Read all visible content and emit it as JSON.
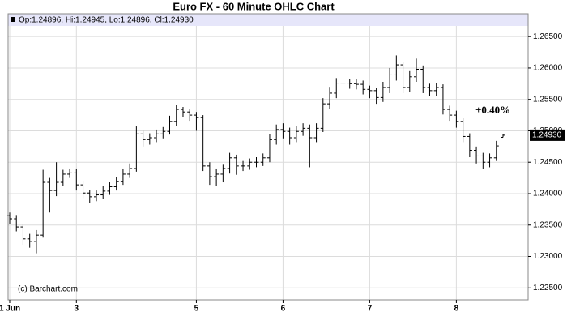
{
  "chart_data": {
    "type": "ohlc",
    "title": "Euro FX - 60 Minute OHLC Chart",
    "info": "Op:1.24896, Hi:1.24945, Lo:1.24896, Cl:1.24930",
    "annotation": "+0.40%",
    "watermark": "(c) Barchart.com",
    "last_price": {
      "value": 1.2493,
      "label": "1.24930"
    },
    "color": "#000000",
    "grid": true,
    "ylim": [
      1.2231,
      1.2667
    ],
    "yticks": [
      {
        "value": 1.225,
        "label": "1.22500"
      },
      {
        "value": 1.23,
        "label": "1.23000"
      },
      {
        "value": 1.235,
        "label": "1.23500"
      },
      {
        "value": 1.24,
        "label": "1.24000"
      },
      {
        "value": 1.245,
        "label": "1.24500"
      },
      {
        "value": 1.25,
        "label": "1.25000"
      },
      {
        "value": 1.255,
        "label": "1.25500"
      },
      {
        "value": 1.26,
        "label": "1.26000"
      },
      {
        "value": 1.265,
        "label": "1.26500"
      }
    ],
    "categories": [
      "1 Jun",
      null,
      null,
      null,
      null,
      null,
      null,
      null,
      null,
      null,
      "3",
      null,
      null,
      null,
      null,
      null,
      null,
      null,
      null,
      null,
      null,
      null,
      null,
      null,
      null,
      null,
      null,
      null,
      "5",
      null,
      null,
      null,
      null,
      null,
      null,
      null,
      null,
      null,
      null,
      null,
      null,
      "6",
      null,
      null,
      null,
      null,
      null,
      null,
      null,
      null,
      null,
      null,
      null,
      null,
      "7",
      null,
      null,
      null,
      null,
      null,
      null,
      null,
      null,
      null,
      null,
      null,
      null,
      "8",
      null,
      null,
      null,
      null,
      null,
      null,
      null
    ],
    "open": [
      1.2365,
      1.236,
      1.2347,
      1.2328,
      1.2324,
      1.2334,
      1.2418,
      1.2405,
      1.2418,
      1.2431,
      1.2433,
      1.2414,
      1.2401,
      1.2395,
      1.2398,
      1.2404,
      1.2411,
      1.2419,
      1.2431,
      1.244,
      1.2495,
      1.2486,
      1.2489,
      1.2495,
      1.2499,
      1.2515,
      1.2534,
      1.253,
      1.2525,
      1.2521,
      1.2444,
      1.2427,
      1.2431,
      1.244,
      1.2457,
      1.2444,
      1.2444,
      1.245,
      1.245,
      1.2457,
      1.2486,
      1.2502,
      1.2499,
      1.2489,
      1.2499,
      1.2504,
      1.2489,
      1.2504,
      1.2543,
      1.256,
      1.2576,
      1.2576,
      1.2575,
      1.2574,
      1.2566,
      1.2564,
      1.2553,
      1.2569,
      1.2589,
      1.2605,
      1.2569,
      1.2586,
      1.2598,
      1.2569,
      1.2564,
      1.2569,
      1.2534,
      1.2525,
      1.2515,
      1.2491,
      1.2469,
      1.246,
      1.245,
      1.2457,
      1.24896
    ],
    "high": [
      1.237,
      1.2366,
      1.2352,
      1.2336,
      1.2342,
      1.2438,
      1.2425,
      1.245,
      1.2438,
      1.244,
      1.244,
      1.242,
      1.2406,
      1.2405,
      1.2412,
      1.2418,
      1.2426,
      1.244,
      1.2448,
      1.2507,
      1.25,
      1.2496,
      1.2502,
      1.2506,
      1.2524,
      1.2541,
      1.2538,
      1.2535,
      1.253,
      1.2525,
      1.245,
      1.244,
      1.2446,
      1.2465,
      1.2462,
      1.2452,
      1.2456,
      1.2458,
      1.2464,
      1.2495,
      1.251,
      1.2512,
      1.2505,
      1.2508,
      1.2512,
      1.251,
      1.2512,
      1.2552,
      1.257,
      1.2584,
      1.2584,
      1.2583,
      1.2582,
      1.258,
      1.2572,
      1.2568,
      1.2578,
      1.26,
      1.262,
      1.261,
      1.2595,
      1.2615,
      1.2604,
      1.2575,
      1.2576,
      1.2574,
      1.254,
      1.2532,
      1.252,
      1.2496,
      1.2475,
      1.2465,
      1.2464,
      1.2484,
      1.24945
    ],
    "low": [
      1.2352,
      1.234,
      1.2318,
      1.2314,
      1.2305,
      1.233,
      1.237,
      1.2396,
      1.2412,
      1.2425,
      1.2405,
      1.2393,
      1.2385,
      1.2388,
      1.2392,
      1.2398,
      1.2405,
      1.2414,
      1.2425,
      1.2435,
      1.2475,
      1.2478,
      1.2482,
      1.2488,
      1.2494,
      1.2508,
      1.2522,
      1.2516,
      1.25,
      1.2436,
      1.2414,
      1.2412,
      1.2418,
      1.2432,
      1.243,
      1.2436,
      1.2438,
      1.2442,
      1.2444,
      1.245,
      1.2478,
      1.2488,
      1.2478,
      1.2482,
      1.2492,
      1.2442,
      1.2482,
      1.2498,
      1.2535,
      1.2552,
      1.2568,
      1.2567,
      1.2566,
      1.2558,
      1.2552,
      1.2543,
      1.2546,
      1.256,
      1.258,
      1.256,
      1.2562,
      1.2578,
      1.256,
      1.2555,
      1.2556,
      1.2526,
      1.2516,
      1.2505,
      1.2482,
      1.2458,
      1.2448,
      1.244,
      1.2442,
      1.2452,
      1.24896
    ],
    "close": [
      1.236,
      1.2347,
      1.2328,
      1.2324,
      1.2334,
      1.2418,
      1.2405,
      1.2418,
      1.2431,
      1.2433,
      1.2414,
      1.2401,
      1.2395,
      1.2398,
      1.2404,
      1.2411,
      1.2419,
      1.2431,
      1.244,
      1.2495,
      1.2486,
      1.2489,
      1.2495,
      1.2499,
      1.2515,
      1.2534,
      1.253,
      1.2525,
      1.2521,
      1.2444,
      1.2427,
      1.2431,
      1.244,
      1.2457,
      1.2444,
      1.2444,
      1.245,
      1.245,
      1.2457,
      1.2486,
      1.2502,
      1.2499,
      1.2489,
      1.2499,
      1.2504,
      1.2489,
      1.2504,
      1.2543,
      1.256,
      1.2576,
      1.2576,
      1.2575,
      1.2574,
      1.2566,
      1.2564,
      1.2553,
      1.2569,
      1.2589,
      1.2605,
      1.2569,
      1.2586,
      1.2598,
      1.2569,
      1.2564,
      1.2569,
      1.2534,
      1.2525,
      1.2515,
      1.2491,
      1.2469,
      1.246,
      1.245,
      1.2457,
      1.2476,
      1.2493
    ]
  }
}
